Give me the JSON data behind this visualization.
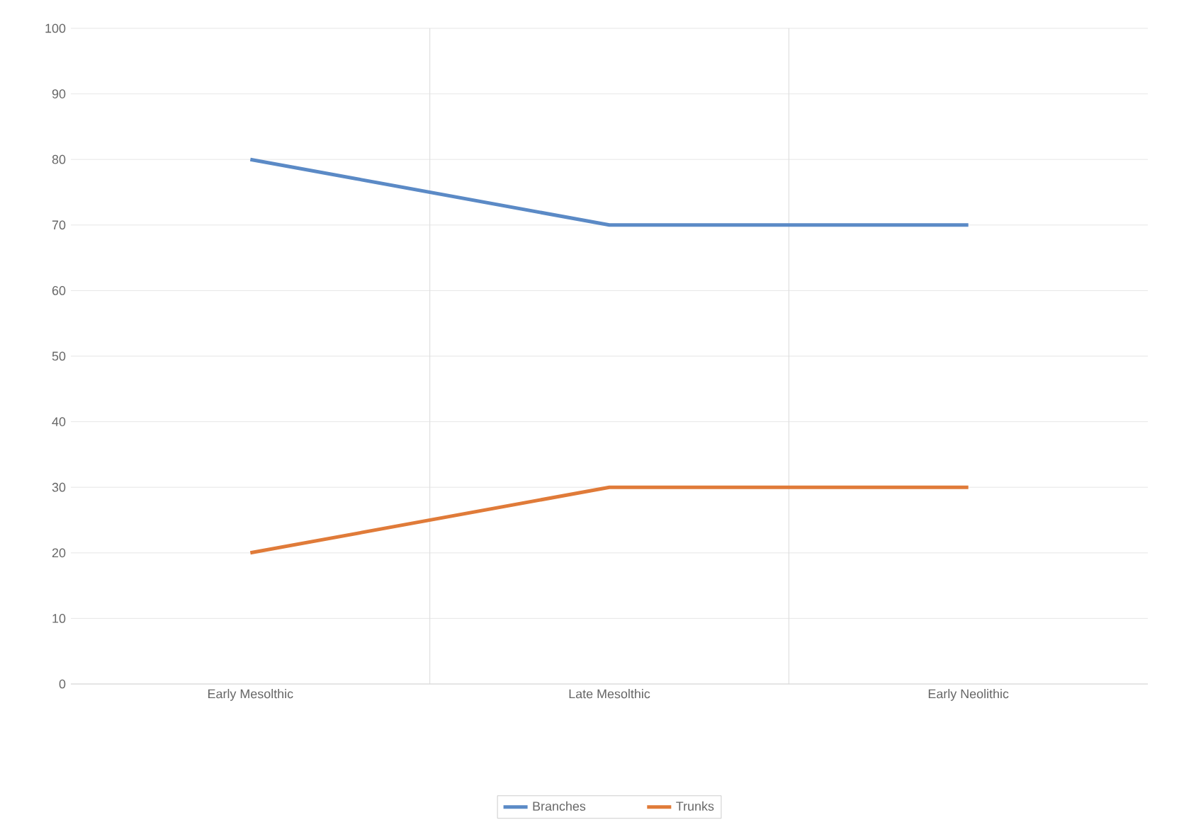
{
  "chart_data": {
    "type": "line",
    "categories": [
      "Early Mesolthic",
      "Late Mesolthic",
      "Early Neolithic"
    ],
    "series": [
      {
        "name": "Branches",
        "color": "#5b8ac6",
        "values": [
          80,
          70,
          70
        ]
      },
      {
        "name": "Trunks",
        "color": "#e07b39",
        "values": [
          20,
          30,
          30
        ]
      }
    ],
    "ylim": [
      0,
      100
    ],
    "yticks": [
      0,
      10,
      20,
      30,
      40,
      50,
      60,
      70,
      80,
      90,
      100
    ],
    "grid": true,
    "legend": "bottom",
    "marker": "none",
    "line_style": "solid"
  }
}
